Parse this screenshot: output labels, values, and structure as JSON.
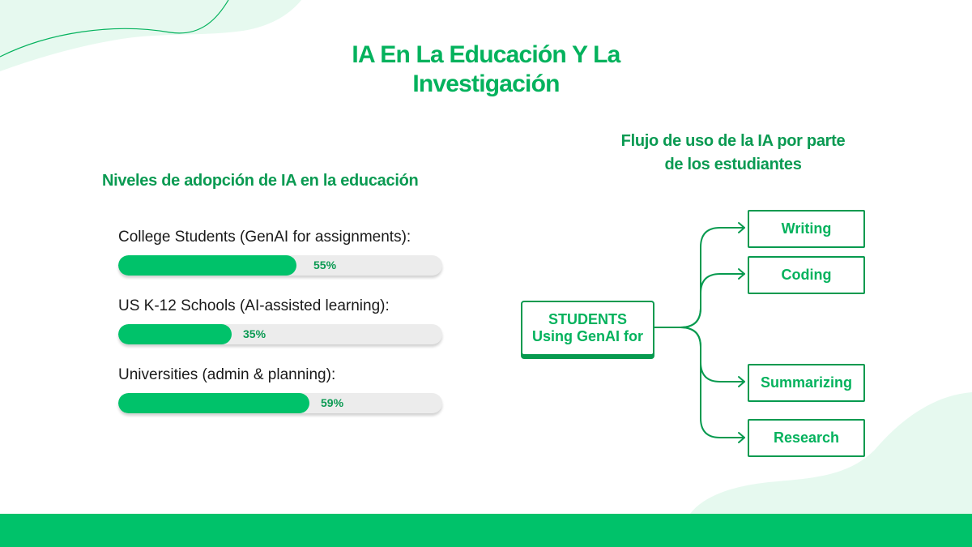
{
  "title": {
    "line1": "IA En La Educación Y La",
    "line2": "Investigación"
  },
  "adoption": {
    "heading": "Niveles de adopción de IA en la educación",
    "items": [
      {
        "label": "College Students (GenAI for assignments):",
        "value": 55,
        "percent_text": "55%"
      },
      {
        "label": "US K-12 Schools (AI-assisted learning):",
        "value": 35,
        "percent_text": "35%"
      },
      {
        "label": "Universities (admin & planning):",
        "value": 59,
        "percent_text": "59%"
      }
    ]
  },
  "flow": {
    "heading_line1": "Flujo de uso de la IA por parte",
    "heading_line2": "de los estudiantes",
    "source_line1": "STUDENTS",
    "source_line2": "Using GenAI for",
    "targets": [
      "Writing",
      "Coding",
      "Summarizing",
      "Research"
    ]
  },
  "colors": {
    "brand_green": "#00c26a",
    "text_green": "#04b25d",
    "border_green": "#079a4f",
    "track_gray": "#ececec",
    "blob_mint": "#e6f9ef"
  }
}
